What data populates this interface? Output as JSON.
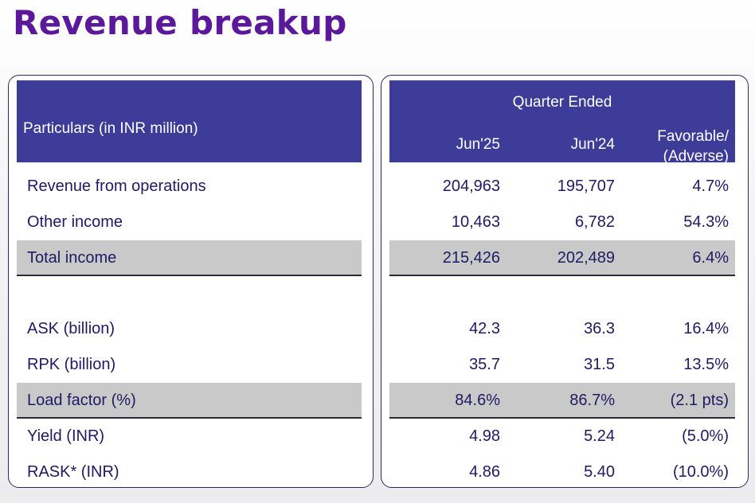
{
  "title": "Revenue breakup",
  "header": {
    "particulars": "Particulars (in INR million)",
    "period_group": "Quarter Ended",
    "col1": "Jun'25",
    "col2": "Jun'24",
    "col3_line1": "Favorable/",
    "col3_line2": "(Adverse)"
  },
  "rows": [
    {
      "label": "Revenue from operations",
      "jun25": "204,963",
      "jun24": "195,707",
      "change": "4.7%",
      "shaded": false
    },
    {
      "label": "Other income",
      "jun25": "10,463",
      "jun24": "6,782",
      "change": "54.3%",
      "shaded": false
    },
    {
      "label": "Total income",
      "jun25": "215,426",
      "jun24": "202,489",
      "change": "6.4%",
      "shaded": true
    },
    {
      "label": "ASK (billion)",
      "jun25": "42.3",
      "jun24": "36.3",
      "change": "16.4%",
      "shaded": false
    },
    {
      "label": "RPK (billion)",
      "jun25": "35.7",
      "jun24": "31.5",
      "change": "13.5%",
      "shaded": false
    },
    {
      "label": "Load factor (%)",
      "jun25": "84.6%",
      "jun24": "86.7%",
      "change": "(2.1 pts)",
      "shaded": true
    },
    {
      "label": "Yield (INR)",
      "jun25": "4.98",
      "jun24": "5.24",
      "change": "(5.0%)",
      "shaded": false
    },
    {
      "label": "RASK* (INR)",
      "jun25": "4.86",
      "jun24": "5.40",
      "change": "(10.0%)",
      "shaded": false
    }
  ],
  "colors": {
    "title": "#5b189a",
    "header_bg": "#3d3c98",
    "shade_bg": "#c9c9c9",
    "text": "#1f1a63"
  }
}
